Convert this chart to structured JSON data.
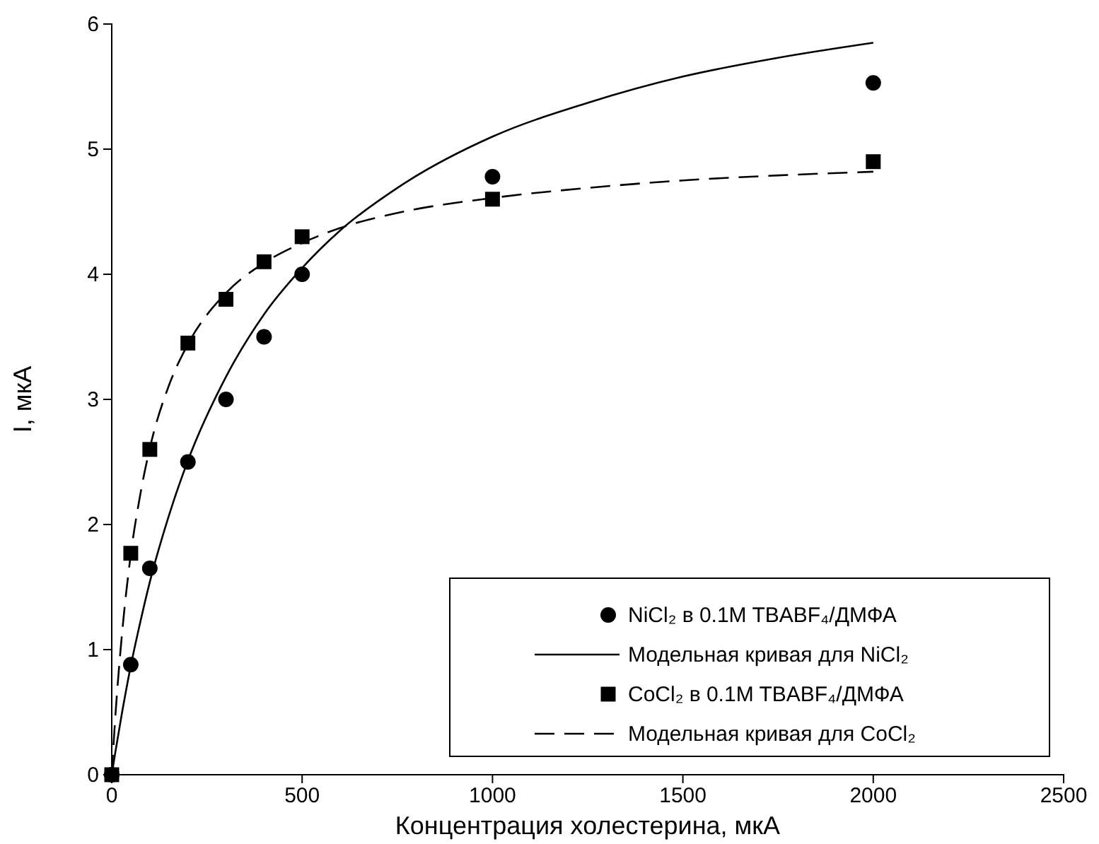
{
  "chart_data": {
    "type": "scatter",
    "xlabel": "Концентрация холестерина, мкА",
    "ylabel": "I, мкА",
    "xlim": [
      0,
      2500
    ],
    "ylim": [
      0,
      6
    ],
    "xticks": [
      0,
      500,
      1000,
      1500,
      2000,
      2500
    ],
    "yticks": [
      0,
      1,
      2,
      3,
      4,
      5,
      6
    ],
    "grid": false,
    "legend": "bottom right",
    "series": [
      {
        "name": "NiCl₂ в 0.1M TBABF₄/ДМФА",
        "type": "scatter",
        "marker": "circle",
        "color": "#000000",
        "x": [
          0,
          50,
          100,
          200,
          300,
          400,
          500,
          1000,
          2000
        ],
        "values": [
          0,
          0.88,
          1.65,
          2.5,
          3.0,
          3.5,
          4.0,
          4.78,
          5.53
        ]
      },
      {
        "name": "Модельная кривая для NiCl₂",
        "type": "line",
        "marker": "none",
        "line_style": "solid",
        "color": "#000000",
        "x": [
          0,
          10,
          25,
          50,
          75,
          100,
          150,
          200,
          300,
          400,
          500,
          600,
          750,
          1000,
          1250,
          1500,
          1750,
          2000
        ],
        "values": [
          0,
          0.19,
          0.46,
          0.87,
          1.22,
          1.54,
          2.07,
          2.51,
          3.18,
          3.68,
          4.05,
          4.35,
          4.69,
          5.1,
          5.37,
          5.58,
          5.73,
          5.85
        ]
      },
      {
        "name": "CoCl₂ в 0.1M TBABF₄/ДМФА",
        "type": "scatter",
        "marker": "square",
        "color": "#000000",
        "x": [
          0,
          50,
          100,
          200,
          300,
          400,
          500,
          1000,
          2000
        ],
        "values": [
          0,
          1.77,
          2.6,
          3.45,
          3.8,
          4.1,
          4.3,
          4.6,
          4.9
        ]
      },
      {
        "name": "Модельная кривая для CoCl₂",
        "type": "line",
        "marker": "none",
        "line_style": "dashed",
        "color": "#000000",
        "x": [
          0,
          10,
          25,
          50,
          75,
          100,
          150,
          200,
          300,
          400,
          500,
          600,
          750,
          1000,
          1250,
          1500,
          1750,
          2000
        ],
        "values": [
          0,
          0.49,
          1.06,
          1.76,
          2.24,
          2.61,
          3.11,
          3.44,
          3.85,
          4.09,
          4.25,
          4.37,
          4.49,
          4.61,
          4.69,
          4.75,
          4.79,
          4.82
        ]
      }
    ]
  }
}
